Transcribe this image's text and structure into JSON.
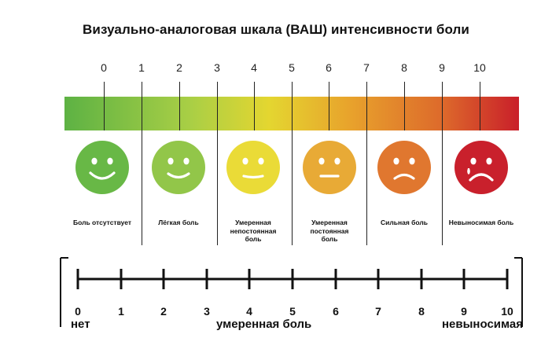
{
  "title": "Визуально-аналоговая шкала (ВАШ) интенсивности боли",
  "top_scale_numbers": [
    "0",
    "1",
    "2",
    "3",
    "4",
    "5",
    "6",
    "7",
    "8",
    "9",
    "10"
  ],
  "colors": {
    "bar_left": "#5db244",
    "bar_mid_green": "#aacf45",
    "bar_yellow": "#e4d630",
    "bar_orange": "#e8a22c",
    "bar_dark_orange": "#dd6a2b",
    "bar_right": "#c91f2a"
  },
  "faces": [
    {
      "icon": "very-happy-face-icon",
      "color": "#68b846",
      "mood": "big-smile"
    },
    {
      "icon": "happy-face-icon",
      "color": "#92c649",
      "mood": "smile"
    },
    {
      "icon": "neutral-smile-face-icon",
      "color": "#eadb37",
      "mood": "slight"
    },
    {
      "icon": "neutral-face-icon",
      "color": "#e8aa36",
      "mood": "flat"
    },
    {
      "icon": "sad-face-icon",
      "color": "#e0772f",
      "mood": "frown"
    },
    {
      "icon": "crying-face-icon",
      "color": "#c9202c",
      "mood": "big-frown"
    }
  ],
  "face_labels": [
    [
      "Боль отсутствует"
    ],
    [
      "Лёгкая боль"
    ],
    [
      "Умеренная",
      "непостоянная",
      "боль"
    ],
    [
      "Умеренная",
      "постоянная",
      "боль"
    ],
    [
      "Сильная боль"
    ],
    [
      "Невыносимая боль"
    ]
  ],
  "bottom_scale_numbers": [
    "0",
    "1",
    "2",
    "3",
    "4",
    "5",
    "6",
    "7",
    "8",
    "9",
    "10"
  ],
  "bottom_words": {
    "left": "нет",
    "middle": "умеренная боль",
    "right": "невыносимая"
  }
}
